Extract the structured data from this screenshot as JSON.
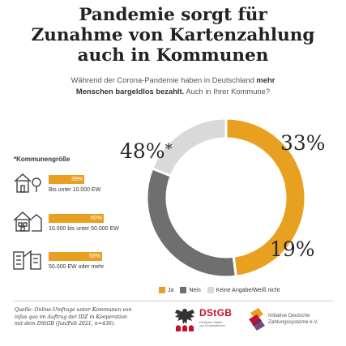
{
  "title": {
    "line1": "Pandemie sorgt für",
    "line2": "Zunahme von Kartenzahlung",
    "line3": "auch in Kommunen"
  },
  "subtitle": {
    "line1_normal": "Während der Corona-Pandemie haben in Deutschland ",
    "line1_bold": "mehr",
    "line2_bold": "Menschen bargeldlos bezahlt.",
    "line2_normal": " Auch in Ihrer Kommune?"
  },
  "chart_data": [
    {
      "type": "pie",
      "variant": "donut",
      "categories": [
        "Ja",
        "Nein",
        "Keine Angabe/Weiß nicht"
      ],
      "values": [
        48,
        33,
        19
      ],
      "labels": [
        "48%",
        "33%",
        "19%"
      ],
      "label_star": "*",
      "colors": [
        "#e8a020",
        "#6f6f6f",
        "#d9d9d9"
      ],
      "legend": [
        "Ja",
        "Nein",
        "Keine Angabe/Weiß nicht"
      ],
      "legend_position": "bottom"
    },
    {
      "type": "bar",
      "orientation": "horizontal",
      "title": "*Kommunengröße",
      "categories": [
        "Bis unter 10.000 EW",
        "10.000 bis unter 50.000 EW",
        "50.000 EW oder mehr"
      ],
      "values": [
        39,
        60,
        58
      ],
      "labels": [
        "39%",
        "60%",
        "58%"
      ],
      "color": "#e8a020",
      "xlim": [
        0,
        100
      ]
    }
  ],
  "source": {
    "line1": "Quelle: Online-Umfrage unter Kommunen von",
    "line2": "infas quo im Auftrag der IDZ in Kooperation",
    "line3": "mit dem DStGB (Jan/Feb 2021, n=436)."
  },
  "logos": {
    "dstgb": "DStGB",
    "dstgb_sub1": "Deutscher Städte-",
    "dstgb_sub2": "und Gemeindebund",
    "idz_line1": "Initiative Deutsche",
    "idz_line2": "Zahlungssysteme e.V."
  },
  "icons": [
    "house-small-icon",
    "house-medium-icon",
    "house-large-icon",
    "eagle-icon",
    "idz-logo-icon"
  ]
}
